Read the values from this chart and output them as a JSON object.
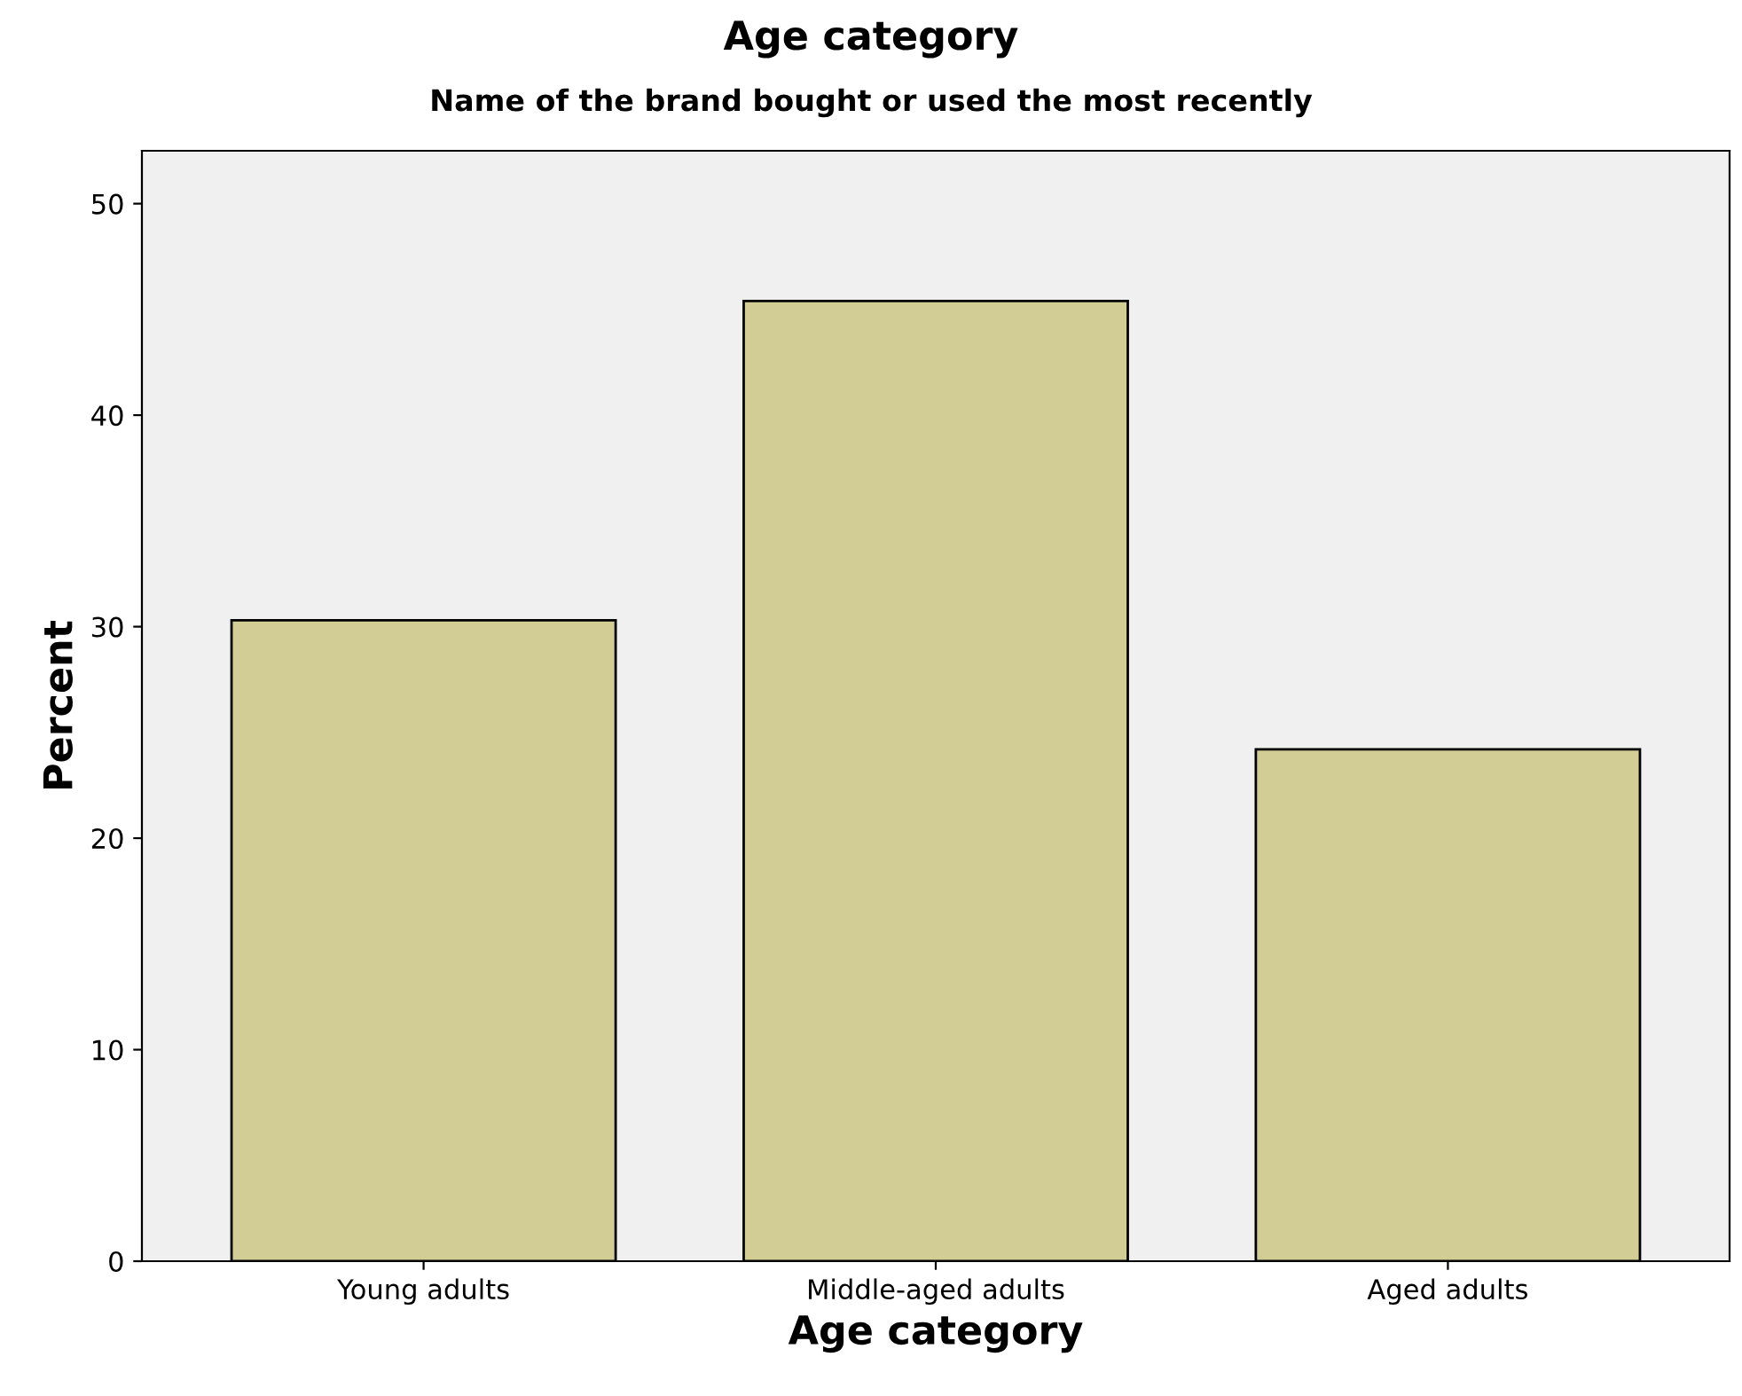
{
  "chart_data": {
    "type": "bar",
    "title": "Age category",
    "subtitle": "Name of the brand bought or used the most recently",
    "xlabel": "Age category",
    "ylabel": "Percent",
    "categories": [
      "Young adults",
      "Middle-aged adults",
      "Aged adults"
    ],
    "values": [
      30.3,
      45.4,
      24.2
    ],
    "color": "#d2cd94",
    "ylim": [
      0,
      52.5
    ],
    "yticks": [
      0,
      10,
      20,
      30,
      40,
      50
    ],
    "grid": false,
    "legend": false
  }
}
